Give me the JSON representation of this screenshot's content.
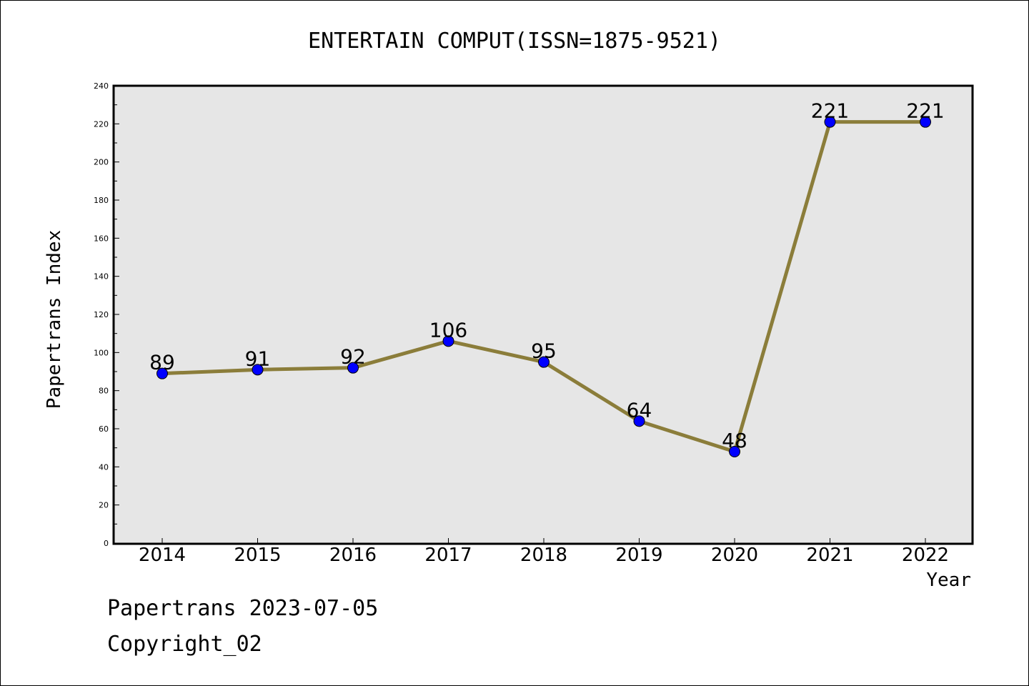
{
  "chart_data": {
    "type": "line",
    "title": "ENTERTAIN COMPUT(ISSN=1875-9521)",
    "xlabel": "Year",
    "ylabel": "Papertrans Index",
    "categories": [
      "2014",
      "2015",
      "2016",
      "2017",
      "2018",
      "2019",
      "2020",
      "2021",
      "2022"
    ],
    "values": [
      89,
      91,
      92,
      106,
      95,
      64,
      48,
      221,
      221
    ],
    "data_labels": [
      "89",
      "91",
      "92",
      "106",
      "95",
      "64",
      "48",
      "221",
      "221"
    ],
    "yticks": [
      "0",
      "20",
      "40",
      "60",
      "80",
      "100",
      "120",
      "140",
      "160",
      "180",
      "200",
      "220",
      "240"
    ],
    "ylim": [
      0,
      240
    ],
    "grid": false,
    "line_color": "#8B7D3A",
    "marker_color": "#0000FF",
    "plot_background": "#E6E6E6"
  },
  "footer": {
    "line1": "Papertrans 2023-07-05",
    "line2": "Copyright_02"
  }
}
